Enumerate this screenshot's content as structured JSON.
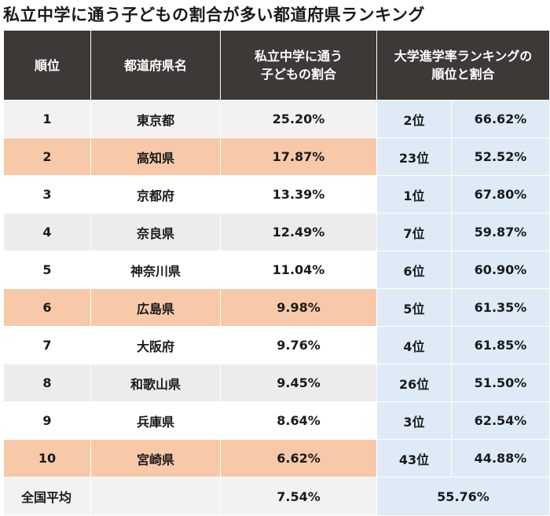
{
  "title": "私立中学に通う子どもの割合が多い都道府県ランキング",
  "headers": {
    "rank": "順位",
    "prefecture": "都道府県名",
    "private_line1": "私立中学に通う",
    "private_line2": "子どもの割合",
    "univ_line1": "大学進学率ランキングの",
    "univ_line2": "順位と割合"
  },
  "rows": [
    {
      "rank": "1",
      "prefecture": "東京都",
      "private": "25.20%",
      "univ_rank": "2位",
      "univ_rate": "66.62%",
      "style": "lgrey"
    },
    {
      "rank": "2",
      "prefecture": "高知県",
      "private": "17.87%",
      "univ_rank": "23位",
      "univ_rate": "52.52%",
      "style": "orange"
    },
    {
      "rank": "3",
      "prefecture": "京都府",
      "private": "13.39%",
      "univ_rank": "1位",
      "univ_rate": "67.80%",
      "style": "white"
    },
    {
      "rank": "4",
      "prefecture": "奈良県",
      "private": "12.49%",
      "univ_rank": "7位",
      "univ_rate": "59.87%",
      "style": "grey"
    },
    {
      "rank": "5",
      "prefecture": "神奈川県",
      "private": "11.04%",
      "univ_rank": "6位",
      "univ_rate": "60.90%",
      "style": "white"
    },
    {
      "rank": "6",
      "prefecture": "広島県",
      "private": "9.98%",
      "univ_rank": "5位",
      "univ_rate": "61.35%",
      "style": "orange"
    },
    {
      "rank": "7",
      "prefecture": "大阪府",
      "private": "9.76%",
      "univ_rank": "4位",
      "univ_rate": "61.85%",
      "style": "white"
    },
    {
      "rank": "8",
      "prefecture": "和歌山県",
      "private": "9.45%",
      "univ_rank": "26位",
      "univ_rate": "51.50%",
      "style": "grey"
    },
    {
      "rank": "9",
      "prefecture": "兵庫県",
      "private": "8.64%",
      "univ_rank": "3位",
      "univ_rate": "62.54%",
      "style": "white"
    },
    {
      "rank": "10",
      "prefecture": "宮崎県",
      "private": "6.62%",
      "univ_rank": "43位",
      "univ_rate": "44.88%",
      "style": "orange"
    }
  ],
  "average": {
    "label": "全国平均",
    "private": "7.54%",
    "univ_rate": "55.76%"
  }
}
